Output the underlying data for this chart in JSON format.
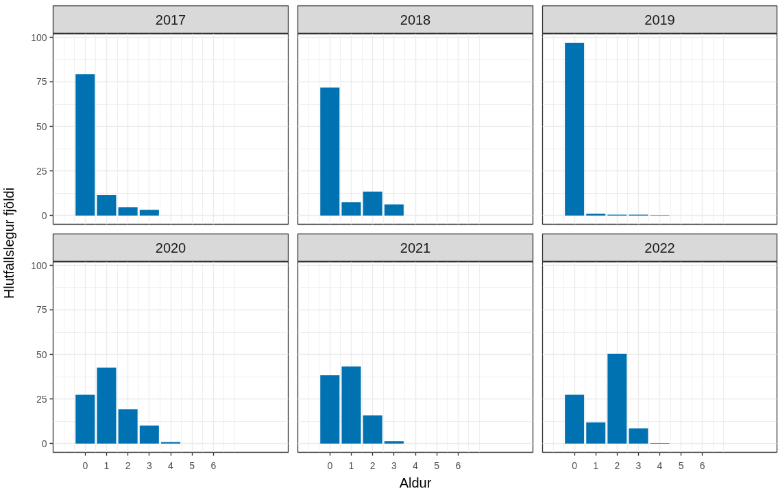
{
  "chart_data": [
    {
      "type": "bar",
      "title": "2017",
      "ylabel": "Hlutfallslegur fjöldi",
      "x": [
        0,
        1,
        2,
        3
      ],
      "values": [
        79.3,
        11.5,
        4.7,
        3.2
      ],
      "color": "#0072b2",
      "xlim": [
        -1.5,
        9.5
      ],
      "ylim": [
        -4.85,
        101.85
      ],
      "xticks": [
        0,
        1,
        2,
        3,
        4,
        5,
        6
      ],
      "yticks": [
        0,
        25,
        50,
        75,
        100
      ],
      "grid": true,
      "tick_labels": "y"
    },
    {
      "type": "bar",
      "title": "2018",
      "x": [
        0,
        1,
        2,
        3
      ],
      "values": [
        71.8,
        7.5,
        13.5,
        6.3
      ],
      "color": "#0072b2",
      "xlim": [
        -1.5,
        9.5
      ],
      "ylim": [
        -4.85,
        101.85
      ],
      "xticks": [
        0,
        1,
        2,
        3,
        4,
        5,
        6
      ],
      "yticks": [
        0,
        25,
        50,
        75,
        100
      ],
      "grid": true,
      "tick_labels": false
    },
    {
      "type": "bar",
      "title": "2019",
      "x": [
        0,
        1,
        2,
        3,
        4
      ],
      "values": [
        96.8,
        1.1,
        0.5,
        0.5,
        0.2
      ],
      "color": "#0072b2",
      "xlim": [
        -1.5,
        9.5
      ],
      "ylim": [
        -4.85,
        101.85
      ],
      "xticks": [
        0,
        1,
        2,
        3,
        4,
        5,
        6
      ],
      "yticks": [
        0,
        25,
        50,
        75,
        100
      ],
      "grid": true,
      "tick_labels": false
    },
    {
      "type": "bar",
      "title": "2020",
      "x": [
        0,
        1,
        2,
        3,
        4
      ],
      "values": [
        27.4,
        42.6,
        19.3,
        10.1,
        0.9
      ],
      "color": "#0072b2",
      "xlim": [
        -1.5,
        9.5
      ],
      "ylim": [
        -4.85,
        101.85
      ],
      "xticks": [
        0,
        1,
        2,
        3,
        4,
        5,
        6
      ],
      "yticks": [
        0,
        25,
        50,
        75,
        100
      ],
      "grid": true
    },
    {
      "type": "bar",
      "title": "2021",
      "xlabel": "Aldur",
      "x": [
        0,
        1,
        2,
        3
      ],
      "values": [
        38.3,
        43.2,
        15.9,
        1.4
      ],
      "color": "#0072b2",
      "xlim": [
        -1.5,
        9.5
      ],
      "ylim": [
        -4.85,
        101.85
      ],
      "xticks": [
        0,
        1,
        2,
        3,
        4,
        5,
        6
      ],
      "yticks": [
        0,
        25,
        50,
        75,
        100
      ],
      "grid": true,
      "tick_labels": "x"
    },
    {
      "type": "bar",
      "title": "2022",
      "x": [
        0,
        1,
        2,
        3,
        4
      ],
      "values": [
        27.4,
        11.9,
        50.3,
        8.6,
        0.3
      ],
      "color": "#0072b2",
      "xlim": [
        -1.5,
        9.5
      ],
      "ylim": [
        -4.85,
        101.85
      ],
      "xticks": [
        0,
        1,
        2,
        3,
        4,
        5,
        6
      ],
      "yticks": [
        0,
        25,
        50,
        75,
        100
      ],
      "grid": true,
      "tick_labels": "x"
    }
  ]
}
